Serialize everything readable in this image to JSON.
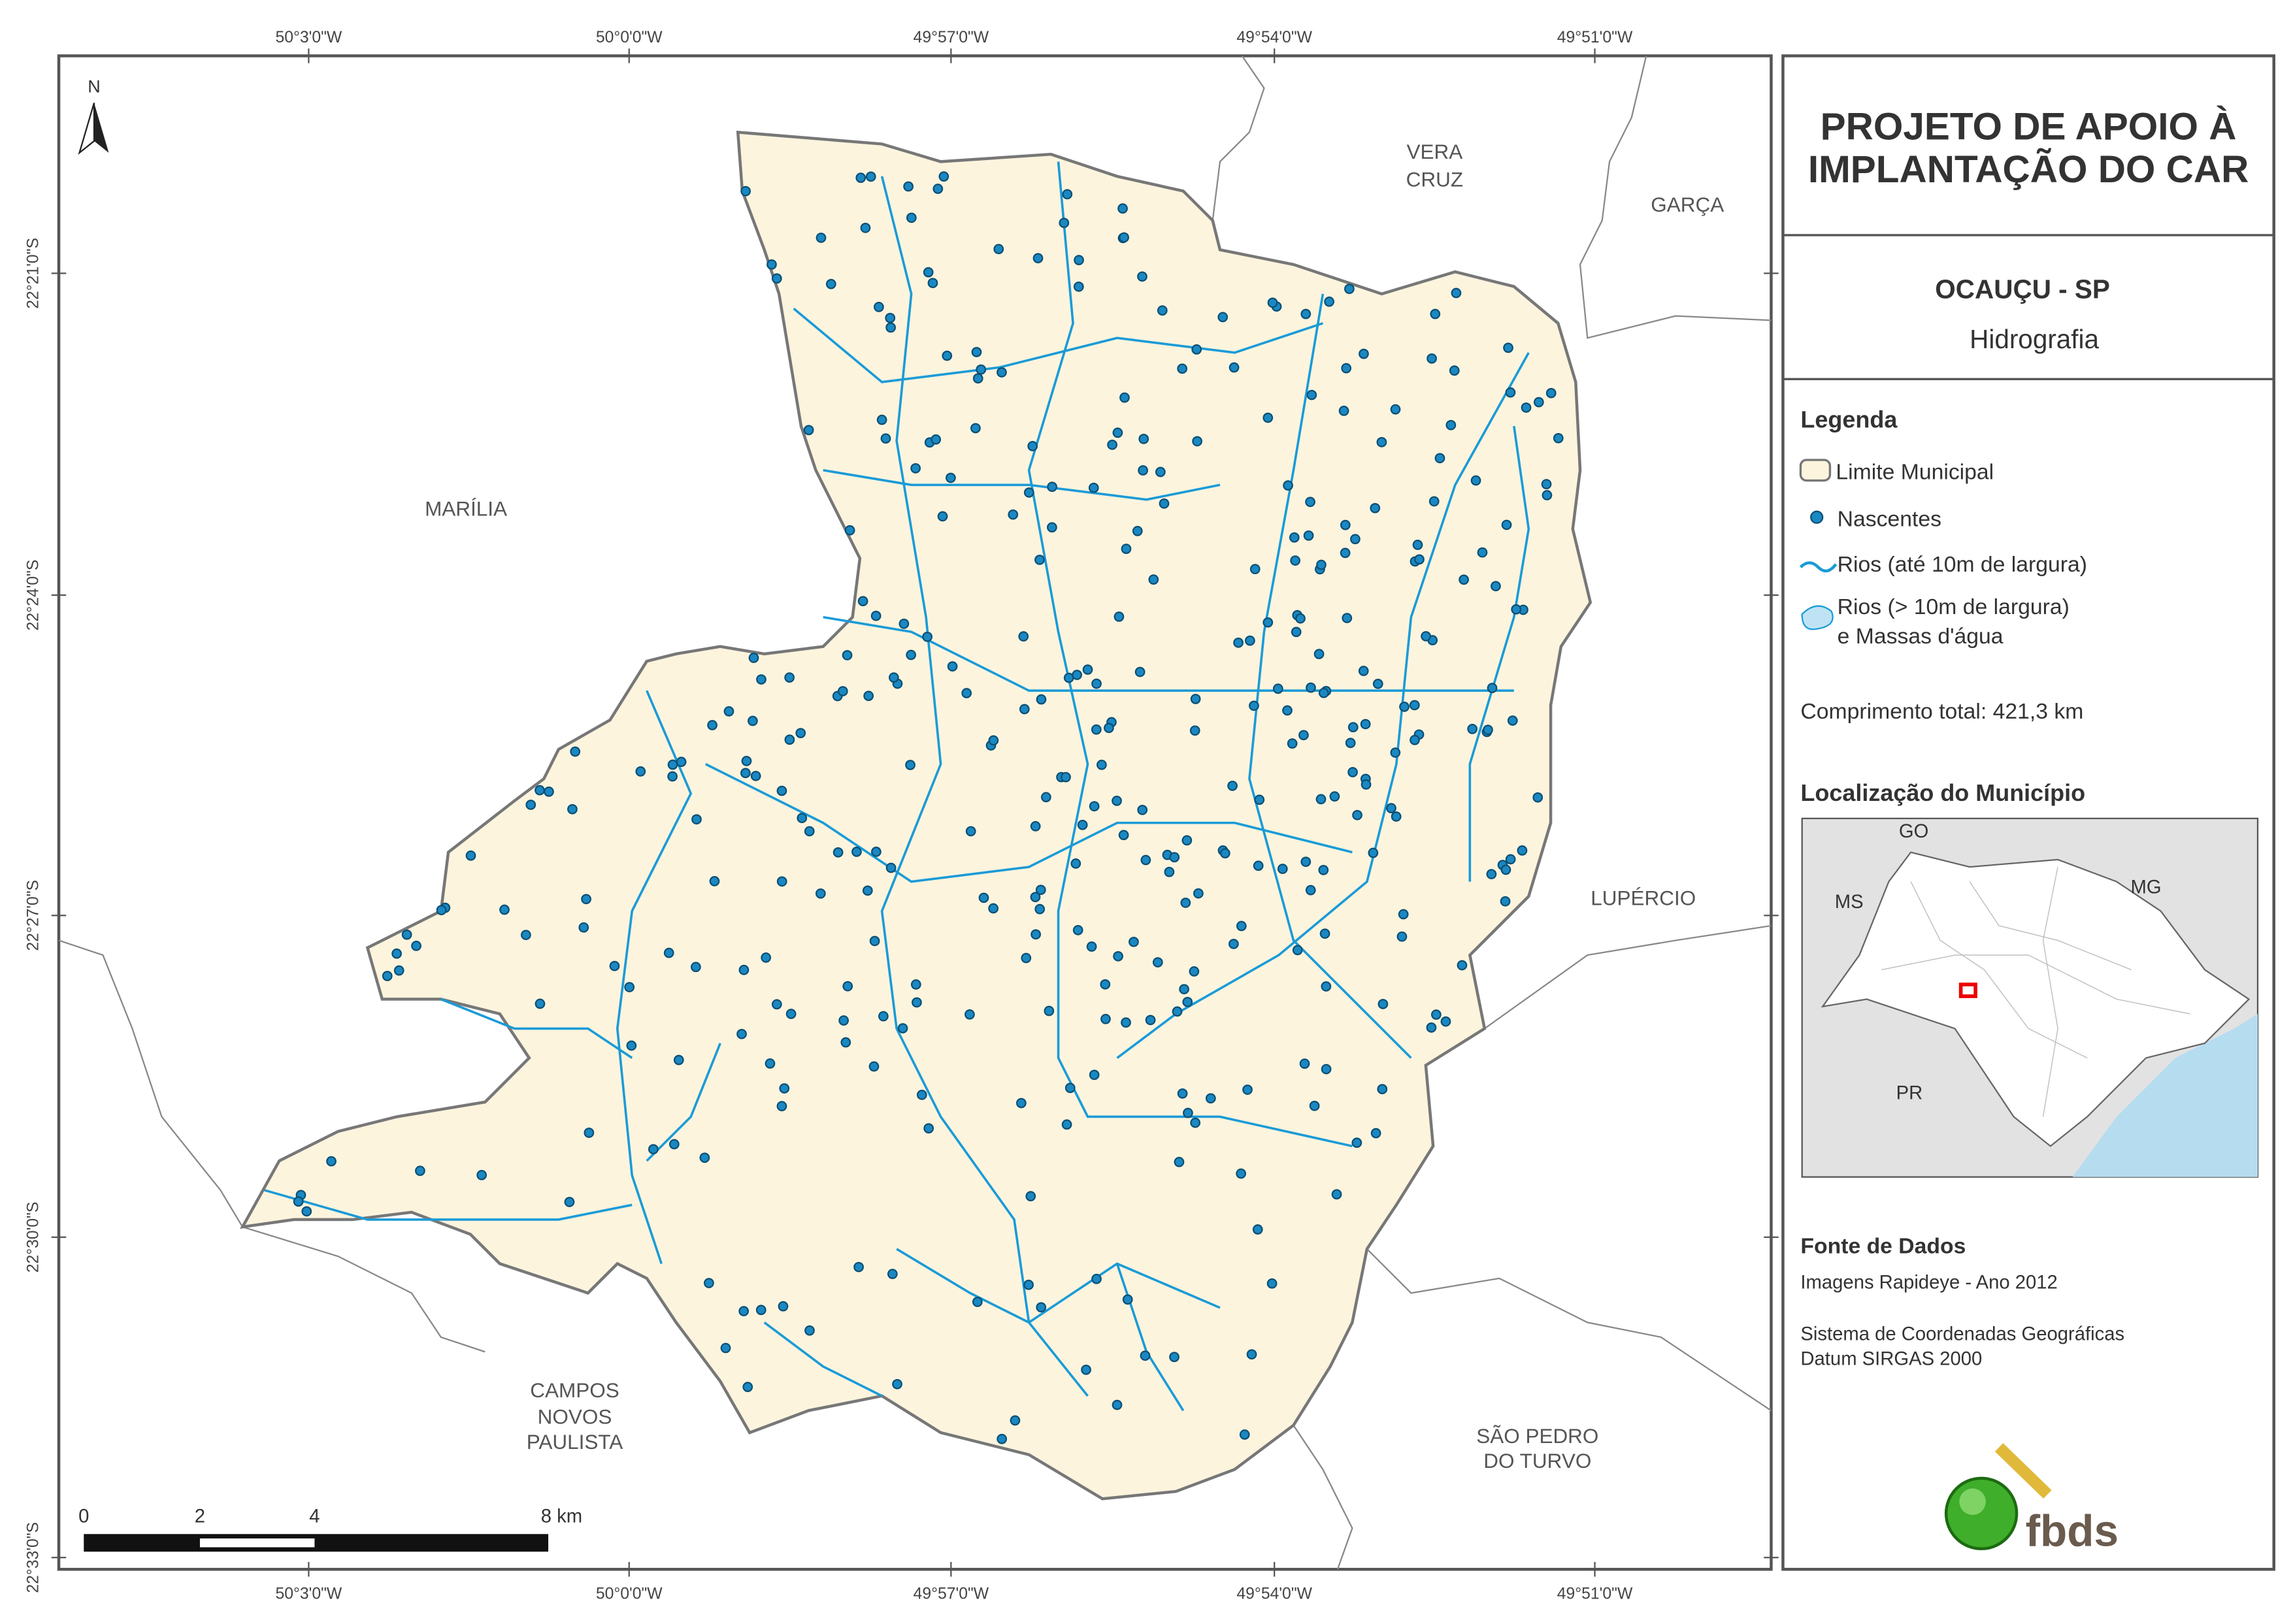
{
  "map": {
    "top_coords": [
      "50°3'0\"W",
      "50°0'0\"W",
      "49°57'0\"W",
      "49°54'0\"W",
      "49°51'0\"W"
    ],
    "bottom_coords": [
      "50°3'0\"W",
      "50°0'0\"W",
      "49°57'0\"W",
      "49°54'0\"W",
      "49°51'0\"W"
    ],
    "left_coords": [
      "22°21'0\"S",
      "22°24'0\"S",
      "22°27'0\"S",
      "22°30'0\"S",
      "22°33'0\"S"
    ],
    "north": "N",
    "neighbors": {
      "vera_cruz": [
        "VERA",
        "CRUZ"
      ],
      "garca": [
        "GARÇA"
      ],
      "marilia": [
        "MARÍLIA"
      ],
      "lupercio": [
        "LUPÉRCIO"
      ],
      "campos_novos": [
        "CAMPOS",
        "NOVOS",
        "PAULISTA"
      ],
      "sao_pedro": [
        "SÃO PEDRO",
        "DO TURVO"
      ]
    },
    "scale_labels": [
      "0",
      "2",
      "4",
      "8 km"
    ]
  },
  "panel": {
    "title": [
      "PROJETO DE APOIO À",
      "IMPLANTAÇÃO DO CAR"
    ],
    "municipality": "OCAUÇU - SP",
    "theme": "Hidrografia",
    "legend_title": "Legenda",
    "legend_items": [
      "Limite Municipal",
      "Nascentes",
      "Rios (até 10m de largura)",
      "Rios (> 10m de largura)",
      "e Massas d'água"
    ],
    "total_length": "Comprimento total: 421,3 km",
    "location_title": "Localização do Município",
    "inset_labels": [
      "GO",
      "MS",
      "MG",
      "PR"
    ],
    "source_title": "Fonte de Dados",
    "sources": [
      "Imagens Rapideye - Ano 2012",
      "Sistema de Coordenadas Geográficas",
      "Datum SIRGAS 2000"
    ],
    "logo": "fbds"
  }
}
